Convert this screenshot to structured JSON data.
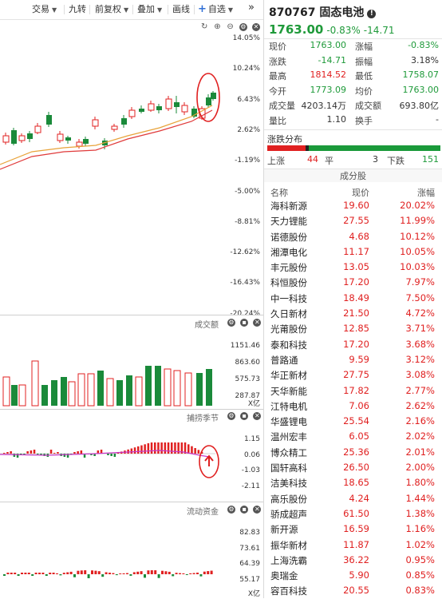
{
  "toolbar": {
    "items": [
      "交易",
      "九转",
      "前复权",
      "叠加",
      "画线",
      "自选"
    ],
    "more": "»"
  },
  "price_chart": {
    "axis_labels": [
      "14.05%",
      "10.24%",
      "6.43%",
      "2.62%",
      "-1.19%",
      "-5.00%",
      "-8.81%",
      "-12.62%",
      "-16.43%",
      "-20.24%"
    ],
    "colors": {
      "up": "#e02020",
      "down": "#1a8a3a",
      "ma_short": "#e8a33a",
      "ma_long": "#e03a3a"
    }
  },
  "volume_panel": {
    "label": "成交额",
    "axis_labels": [
      "1151.46",
      "863.60",
      "575.73",
      "287.87"
    ],
    "unit": "X亿"
  },
  "timing_panel": {
    "label": "捕捞季节",
    "axis_labels": [
      "1.15",
      "0.06",
      "-1.03",
      "-2.11"
    ]
  },
  "flow_panel": {
    "label": "流动资金",
    "axis_labels": [
      "82.83",
      "73.61",
      "64.39",
      "55.17"
    ],
    "unit": "X亿"
  },
  "stock": {
    "code_name": "870767 固态电池",
    "price": "1763.00",
    "change_pct": "-0.83%",
    "change": "-14.71"
  },
  "stats": {
    "rows": [
      {
        "l1": "现价",
        "v1": "1763.00",
        "c1": "green",
        "l2": "涨幅",
        "v2": "-0.83%",
        "c2": "green"
      },
      {
        "l1": "涨跌",
        "v1": "-14.71",
        "c1": "green",
        "l2": "振幅",
        "v2": "3.18%",
        "c2": "dark"
      },
      {
        "l1": "最高",
        "v1": "1814.52",
        "c1": "red",
        "l2": "最低",
        "v2": "1758.07",
        "c2": "green"
      },
      {
        "l1": "今开",
        "v1": "1773.09",
        "c1": "green",
        "l2": "均价",
        "v2": "1763.00",
        "c2": "green"
      },
      {
        "l1": "成交量",
        "v1": "4203.14万",
        "c1": "dark",
        "l2": "成交额",
        "v2": "693.80亿",
        "c2": "dark"
      },
      {
        "l1": "量比",
        "v1": "1.10",
        "c1": "dark",
        "l2": "换手",
        "v2": "-",
        "c2": "dark"
      }
    ]
  },
  "distribution": {
    "title": "涨跌分布",
    "up_label": "上涨",
    "up": "44",
    "flat_label": "平",
    "flat": "3",
    "down_label": "下跌",
    "down": "151",
    "up_count": 44,
    "flat_count": 3,
    "down_count": 151
  },
  "constituents": {
    "title": "成分股",
    "headers": [
      "名称",
      "现价",
      "涨幅"
    ],
    "rows": [
      [
        "海科新源",
        "19.60",
        "20.02%"
      ],
      [
        "天力锂能",
        "27.55",
        "11.99%"
      ],
      [
        "诺德股份",
        "4.68",
        "10.12%"
      ],
      [
        "湘潭电化",
        "11.17",
        "10.05%"
      ],
      [
        "丰元股份",
        "13.05",
        "10.03%"
      ],
      [
        "科恒股份",
        "17.20",
        "7.97%"
      ],
      [
        "中一科技",
        "18.49",
        "7.50%"
      ],
      [
        "久日新材",
        "21.50",
        "4.72%"
      ],
      [
        "光莆股份",
        "12.85",
        "3.71%"
      ],
      [
        "泰和科技",
        "17.20",
        "3.68%"
      ],
      [
        "普路通",
        "9.59",
        "3.12%"
      ],
      [
        "华正新材",
        "27.75",
        "3.08%"
      ],
      [
        "天华新能",
        "17.82",
        "2.77%"
      ],
      [
        "江特电机",
        "7.06",
        "2.62%"
      ],
      [
        "华盛锂电",
        "25.54",
        "2.16%"
      ],
      [
        "温州宏丰",
        "6.05",
        "2.02%"
      ],
      [
        "博众精工",
        "25.36",
        "2.01%"
      ],
      [
        "国轩高科",
        "26.50",
        "2.00%"
      ],
      [
        "洁美科技",
        "18.65",
        "1.80%"
      ],
      [
        "高乐股份",
        "4.24",
        "1.44%"
      ],
      [
        "骄成超声",
        "61.50",
        "1.38%"
      ],
      [
        "新开源",
        "16.59",
        "1.16%"
      ],
      [
        "振华新材",
        "11.87",
        "1.02%"
      ],
      [
        "上海洗霸",
        "36.22",
        "0.95%"
      ],
      [
        "奥瑞金",
        "5.90",
        "0.85%"
      ],
      [
        "容百科技",
        "20.55",
        "0.83%"
      ]
    ]
  }
}
